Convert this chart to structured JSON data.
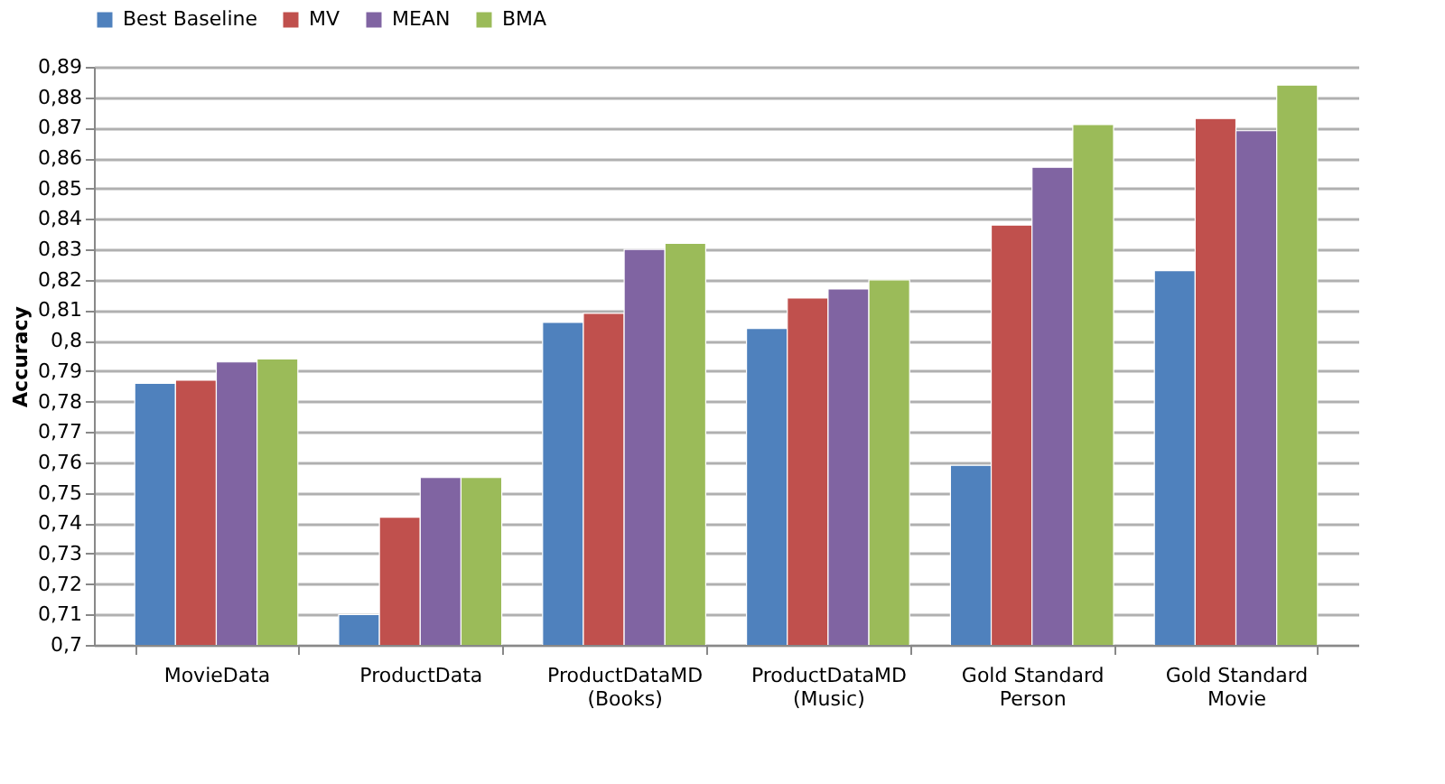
{
  "chart_data": {
    "type": "bar",
    "ylabel": "Accuracy",
    "categories": [
      "MovieData",
      "ProductData",
      "ProductDataMD (Books)",
      "ProductDataMD (Music)",
      "Gold Standard Person",
      "Gold Standard Movie"
    ],
    "series": [
      {
        "name": "Best Baseline",
        "color": "#4f81bd",
        "values": [
          0.786,
          0.71,
          0.806,
          0.804,
          0.759,
          0.823
        ]
      },
      {
        "name": "MV",
        "color": "#c0504d",
        "values": [
          0.787,
          0.742,
          0.809,
          0.814,
          0.838,
          0.873
        ]
      },
      {
        "name": "MEAN",
        "color": "#8064a2",
        "values": [
          0.793,
          0.755,
          0.83,
          0.817,
          0.857,
          0.869
        ]
      },
      {
        "name": "BMA",
        "color": "#9bbb59",
        "values": [
          0.794,
          0.755,
          0.832,
          0.82,
          0.871,
          0.884
        ]
      }
    ],
    "ylim": [
      0.7,
      0.89
    ],
    "yticks": [
      {
        "value": 0.7,
        "label": "0,7"
      },
      {
        "value": 0.71,
        "label": "0,71"
      },
      {
        "value": 0.72,
        "label": "0,72"
      },
      {
        "value": 0.73,
        "label": "0,73"
      },
      {
        "value": 0.74,
        "label": "0,74"
      },
      {
        "value": 0.75,
        "label": "0,75"
      },
      {
        "value": 0.76,
        "label": "0,76"
      },
      {
        "value": 0.77,
        "label": "0,77"
      },
      {
        "value": 0.78,
        "label": "0,78"
      },
      {
        "value": 0.79,
        "label": "0,79"
      },
      {
        "value": 0.8,
        "label": "0,8"
      },
      {
        "value": 0.81,
        "label": "0,81"
      },
      {
        "value": 0.82,
        "label": "0,82"
      },
      {
        "value": 0.83,
        "label": "0,83"
      },
      {
        "value": 0.84,
        "label": "0,84"
      },
      {
        "value": 0.85,
        "label": "0,85"
      },
      {
        "value": 0.86,
        "label": "0,86"
      },
      {
        "value": 0.87,
        "label": "0,87"
      },
      {
        "value": 0.88,
        "label": "0,88"
      },
      {
        "value": 0.89,
        "label": "0,89"
      }
    ],
    "grid": "y",
    "legend": "top"
  }
}
